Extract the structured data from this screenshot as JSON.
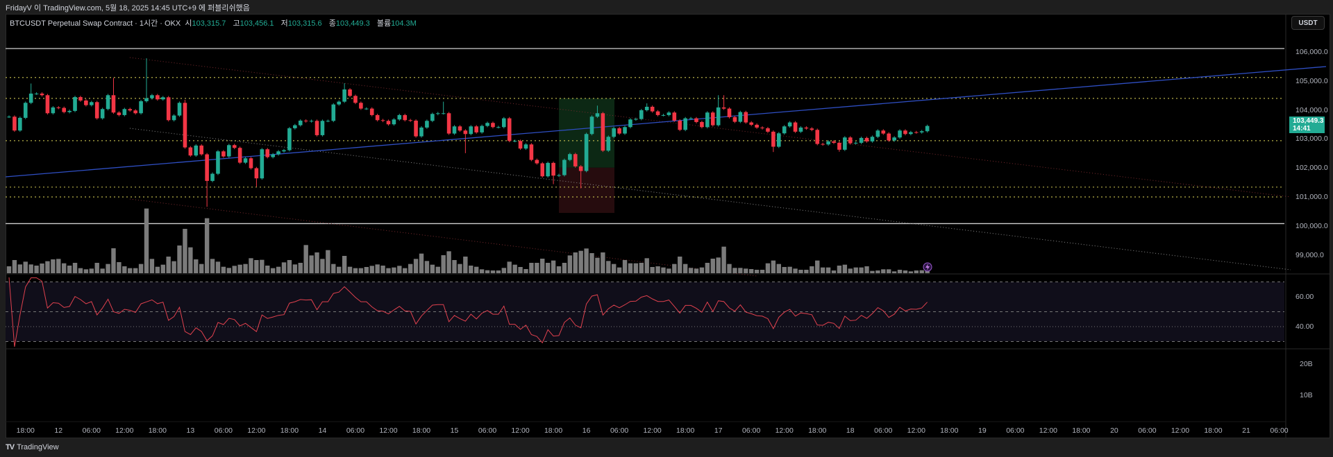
{
  "header": {
    "publish_text": "FridayV 이 TradingView.com, 5월 18, 2025 14:45 UTC+9 에 퍼블리쉬했음"
  },
  "legend": {
    "symbol": "BTCUSDT Perpetual Swap Contract · 1시간 · OKX",
    "open_label": "시",
    "open": "103,315.7",
    "high_label": "고",
    "high": "103,456.1",
    "low_label": "저",
    "low": "103,315.6",
    "close_label": "종",
    "close": "103,449.3",
    "volume_label": "볼륨",
    "volume": "104.3M"
  },
  "currency_button": "USDT",
  "last_price": {
    "price": "103,449.3",
    "countdown": "14:41"
  },
  "price_axis": [
    "106,000.0",
    "105,000.0",
    "104,000.0",
    "103,000.0",
    "102,000.0",
    "101,000.0",
    "100,000.0",
    "99,000.0"
  ],
  "rsi_axis": [
    "60.00",
    "40.00"
  ],
  "volume_axis": [
    "20B",
    "10B"
  ],
  "time_axis": [
    "18:00",
    "12",
    "06:00",
    "12:00",
    "18:00",
    "13",
    "06:00",
    "12:00",
    "18:00",
    "14",
    "06:00",
    "12:00",
    "18:00",
    "15",
    "06:00",
    "12:00",
    "18:00",
    "16",
    "06:00",
    "12:00",
    "18:00",
    "17",
    "06:00",
    "12:00",
    "18:00",
    "18",
    "06:00",
    "12:00",
    "18:00",
    "19",
    "06:00",
    "12:00",
    "18:00",
    "20",
    "06:00",
    "12:00",
    "18:00",
    "21",
    "06:00"
  ],
  "footer": {
    "brand": "TradingView",
    "logo": "17"
  },
  "colors": {
    "up": "#22ab94",
    "down": "#f23645",
    "volume": "#7b7b7b",
    "rsi": "#e0414e",
    "trend": "#2f4fc4",
    "level": "#b9b24a"
  },
  "chart_data": {
    "type": "candlestick",
    "timeframe": "1h",
    "first_open": 103769,
    "closes": [
      103769,
      103291,
      103729,
      104247,
      104566,
      104566,
      104510,
      103888,
      104088,
      104072,
      103928,
      103968,
      104446,
      104327,
      104167,
      104271,
      103713,
      104032,
      104510,
      103912,
      103825,
      104032,
      103984,
      103888,
      104303,
      104406,
      104510,
      104366,
      104438,
      103649,
      103809,
      104247,
      102709,
      102430,
      102773,
      102470,
      101553,
      101800,
      102573,
      102398,
      102788,
      102693,
      102183,
      102334,
      101992,
      101641,
      102645,
      102374,
      102470,
      102573,
      102613,
      103370,
      103474,
      103633,
      103609,
      103625,
      103131,
      103625,
      103625,
      104191,
      104287,
      104709,
      104486,
      104247,
      104048,
      104048,
      103825,
      103649,
      103625,
      103506,
      103673,
      103825,
      103649,
      103633,
      103091,
      103394,
      103625,
      103864,
      103888,
      103888,
      103187,
      103434,
      103291,
      103171,
      103434,
      103227,
      103450,
      103554,
      103410,
      103410,
      103713,
      102932,
      102932,
      102669,
      102812,
      102278,
      102159,
      101712,
      102175,
      101736,
      101752,
      102278,
      102478,
      102055,
      101896,
      103171,
      103769,
      103888,
      102597,
      103075,
      103370,
      103187,
      103410,
      103673,
      103689,
      103992,
      104111,
      103952,
      103825,
      103825,
      103912,
      103633,
      103314,
      103713,
      103713,
      103585,
      103410,
      103912,
      103474,
      104088,
      104048,
      103753,
      103593,
      103928,
      103570,
      103490,
      103394,
      103370,
      103251,
      102733,
      103195,
      103434,
      103570,
      103251,
      103394,
      103362,
      103314,
      102828,
      102812,
      102916,
      102868,
      102629,
      103052,
      102852,
      102868,
      103036,
      102916,
      103075,
      103291,
      103187,
      102948,
      103052,
      103291,
      103171,
      103235,
      103227,
      103267,
      103449
    ],
    "wick_overrides": {
      "4": {
        "h": 104913
      },
      "19": {
        "h": 105108
      },
      "25": {
        "h": 105785
      },
      "32": {
        "h": 104350
      },
      "36": {
        "l": 100660
      },
      "45": {
        "l": 101354
      },
      "61": {
        "h": 104924
      },
      "79": {
        "h": 104287
      },
      "83": {
        "l": 102510
      },
      "99": {
        "l": 101441
      },
      "104": {
        "l": 101298
      },
      "107": {
        "h": 104151
      },
      "116": {
        "h": 104230
      },
      "129": {
        "h": 104510
      },
      "130": {
        "h": 104510
      },
      "139": {
        "l": 102550
      },
      "151": {
        "l": 102560
      }
    },
    "volumes": [
      30,
      57,
      38,
      50,
      38,
      33,
      42,
      52,
      60,
      62,
      43,
      33,
      45,
      22,
      17,
      20,
      45,
      20,
      40,
      108,
      48,
      30,
      22,
      22,
      40,
      280,
      62,
      28,
      37,
      72,
      52,
      120,
      192,
      112,
      60,
      40,
      238,
      62,
      50,
      28,
      23,
      32,
      37,
      40,
      65,
      57,
      58,
      33,
      22,
      28,
      47,
      57,
      38,
      45,
      122,
      77,
      90,
      62,
      100,
      40,
      28,
      75,
      28,
      22,
      22,
      27,
      32,
      38,
      33,
      22,
      25,
      32,
      22,
      40,
      62,
      85,
      53,
      37,
      28,
      78,
      95,
      57,
      40,
      72,
      33,
      28,
      17,
      13,
      12,
      12,
      23,
      50,
      37,
      27,
      18,
      45,
      45,
      63,
      45,
      55,
      30,
      45,
      77,
      90,
      97,
      107,
      87,
      67,
      90,
      53,
      40,
      25,
      57,
      43,
      43,
      45,
      65,
      27,
      30,
      25,
      20,
      40,
      72,
      40,
      23,
      20,
      25,
      45,
      63,
      68,
      115,
      40,
      23,
      23,
      20,
      18,
      15,
      15,
      43,
      55,
      40,
      27,
      28,
      20,
      15,
      15,
      30,
      55,
      25,
      25,
      12,
      33,
      37,
      20,
      25,
      25,
      30,
      10,
      12,
      17,
      17,
      8,
      15,
      12,
      8,
      12,
      13,
      15
    ],
    "price_range": [
      98700,
      106400
    ],
    "horizontal_levels_solid": [
      106120,
      100080
    ],
    "horizontal_levels_dotted": [
      105120,
      104400,
      102940,
      101340,
      101000
    ],
    "rsi": {
      "period": 14,
      "levels": [
        70,
        60,
        50,
        40,
        30
      ]
    }
  }
}
